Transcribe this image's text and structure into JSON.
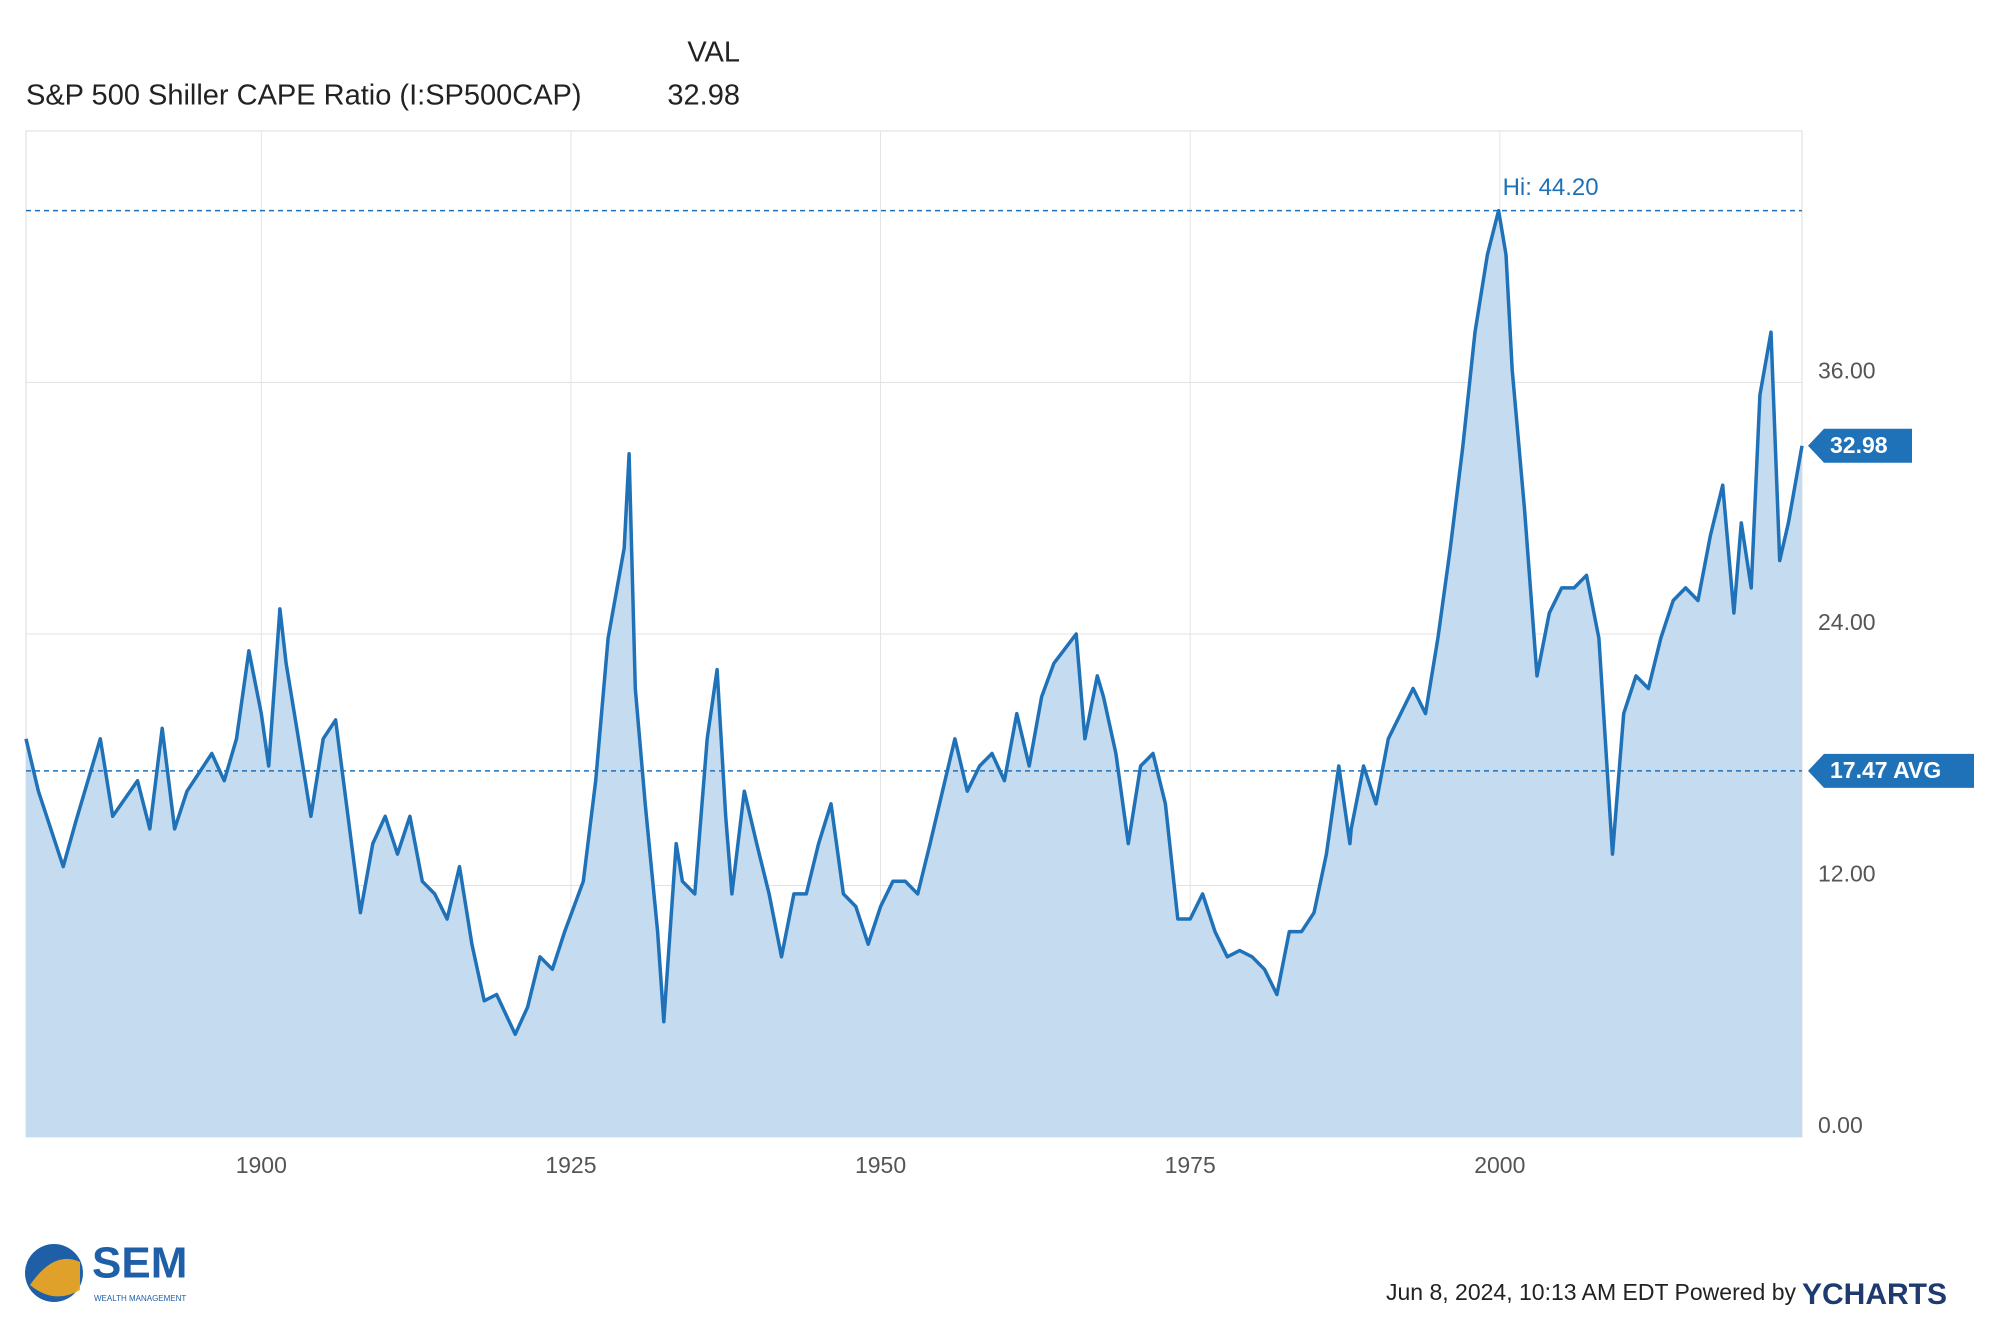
{
  "chart_data": {
    "type": "area",
    "legend_header": "VAL",
    "series": [
      {
        "name": "S&P 500 Shiller CAPE Ratio (I:SP500CAP)",
        "color": "#1f72b8",
        "fill": "#c5dbef",
        "x": [
          1881,
          1882,
          1884,
          1885,
          1887,
          1888,
          1890,
          1891,
          1892,
          1893,
          1894,
          1896,
          1897,
          1898,
          1899,
          1900,
          1900.6,
          1901.5,
          1902,
          1903,
          1904,
          1905,
          1906,
          1907,
          1908,
          1909,
          1910,
          1911,
          1912,
          1913,
          1914,
          1915,
          1916,
          1917,
          1918,
          1919,
          1920.5,
          1921.5,
          1922.5,
          1923.5,
          1924.5,
          1926,
          1927,
          1928,
          1929.3,
          1929.7,
          1930.2,
          1931,
          1932,
          1932.5,
          1933.5,
          1934,
          1935,
          1936,
          1936.8,
          1937.5,
          1938,
          1939,
          1940,
          1941,
          1942,
          1943,
          1944,
          1945,
          1946,
          1947,
          1948,
          1949,
          1950,
          1951,
          1952,
          1953,
          1954,
          1955,
          1956,
          1957,
          1958,
          1959,
          1960,
          1961,
          1962,
          1963,
          1964,
          1965.8,
          1966.5,
          1967.5,
          1968,
          1969,
          1970,
          1971,
          1972,
          1973,
          1974,
          1975,
          1976,
          1977,
          1978,
          1979,
          1980,
          1981,
          1982,
          1983,
          1984,
          1985,
          1986,
          1987,
          1987.9,
          1988,
          1989,
          1990,
          1991,
          1992,
          1993,
          1994,
          1995,
          1996,
          1997,
          1998,
          1999,
          1999.9,
          2000.5,
          2001,
          2002,
          2003,
          2004,
          2005,
          2006,
          2007,
          2008,
          2009.1,
          2010,
          2011,
          2012,
          2013,
          2014,
          2015,
          2016,
          2017,
          2018,
          2018.9,
          2019.5,
          2020.3,
          2021,
          2021.9,
          2022.6,
          2023.3,
          2024.4
        ],
        "values": [
          19,
          16.5,
          12.9,
          15,
          19,
          15.3,
          17,
          14.7,
          19.5,
          14.7,
          16.5,
          18.3,
          17,
          19,
          23.2,
          20.2,
          17.7,
          25.2,
          22.6,
          19,
          15.3,
          19,
          19.9,
          15.3,
          10.7,
          14,
          15.3,
          13.5,
          15.3,
          12.2,
          11.6,
          10.4,
          12.9,
          9.2,
          6.5,
          6.8,
          4.9,
          6.2,
          8.6,
          8,
          9.8,
          12.2,
          17,
          23.8,
          28.1,
          32.6,
          21.4,
          15.9,
          9.8,
          5.5,
          14,
          12.2,
          11.6,
          19,
          22.3,
          15.3,
          11.6,
          16.5,
          14,
          11.6,
          8.6,
          11.6,
          11.6,
          14,
          15.9,
          11.6,
          11,
          9.2,
          11,
          12.2,
          12.2,
          11.6,
          14,
          16.5,
          19,
          16.5,
          17.7,
          18.3,
          17,
          20.2,
          17.7,
          21,
          22.6,
          24,
          19,
          22,
          21,
          18.3,
          14,
          17.7,
          18.3,
          15.9,
          10.4,
          10.4,
          11.6,
          9.8,
          8.6,
          8.9,
          8.6,
          8,
          6.8,
          9.8,
          9.8,
          10.7,
          13.5,
          17.7,
          14,
          14.7,
          17.7,
          15.9,
          19,
          20.2,
          21.4,
          20.2,
          23.8,
          28.1,
          32.9,
          38.4,
          42.1,
          44.2,
          42.1,
          36.6,
          29.9,
          22,
          25,
          26.2,
          26.2,
          26.8,
          23.8,
          13.5,
          20.2,
          22,
          21.4,
          23.8,
          25.6,
          26.2,
          25.6,
          28.7,
          31.1,
          25,
          29.3,
          26.2,
          35.4,
          38.4,
          27.5,
          29.3,
          32.98
        ]
      }
    ],
    "last": {
      "value": 32.98,
      "label": "32.98"
    },
    "average": {
      "value": 17.47,
      "label": "17.47 AVG"
    },
    "high": {
      "value": 44.2,
      "label": "Hi: 44.20"
    },
    "xlim": [
      1881,
      2024.4
    ],
    "xticks": [
      1900,
      1925,
      1950,
      1975,
      2000
    ],
    "ylim": [
      0,
      48
    ],
    "yticks": [
      {
        "value": 0,
        "label": "0.00"
      },
      {
        "value": 12,
        "label": "12.00"
      },
      {
        "value": 24,
        "label": "24.00"
      },
      {
        "value": 36,
        "label": "36.00"
      }
    ],
    "grid": true
  },
  "logo": {
    "name": "SEM",
    "tagline": "WEALTH MANAGEMENT"
  },
  "footer": {
    "timestamp": "Jun 8, 2024, 10:13 AM EDT Powered by",
    "brand": "YCHARTS"
  }
}
